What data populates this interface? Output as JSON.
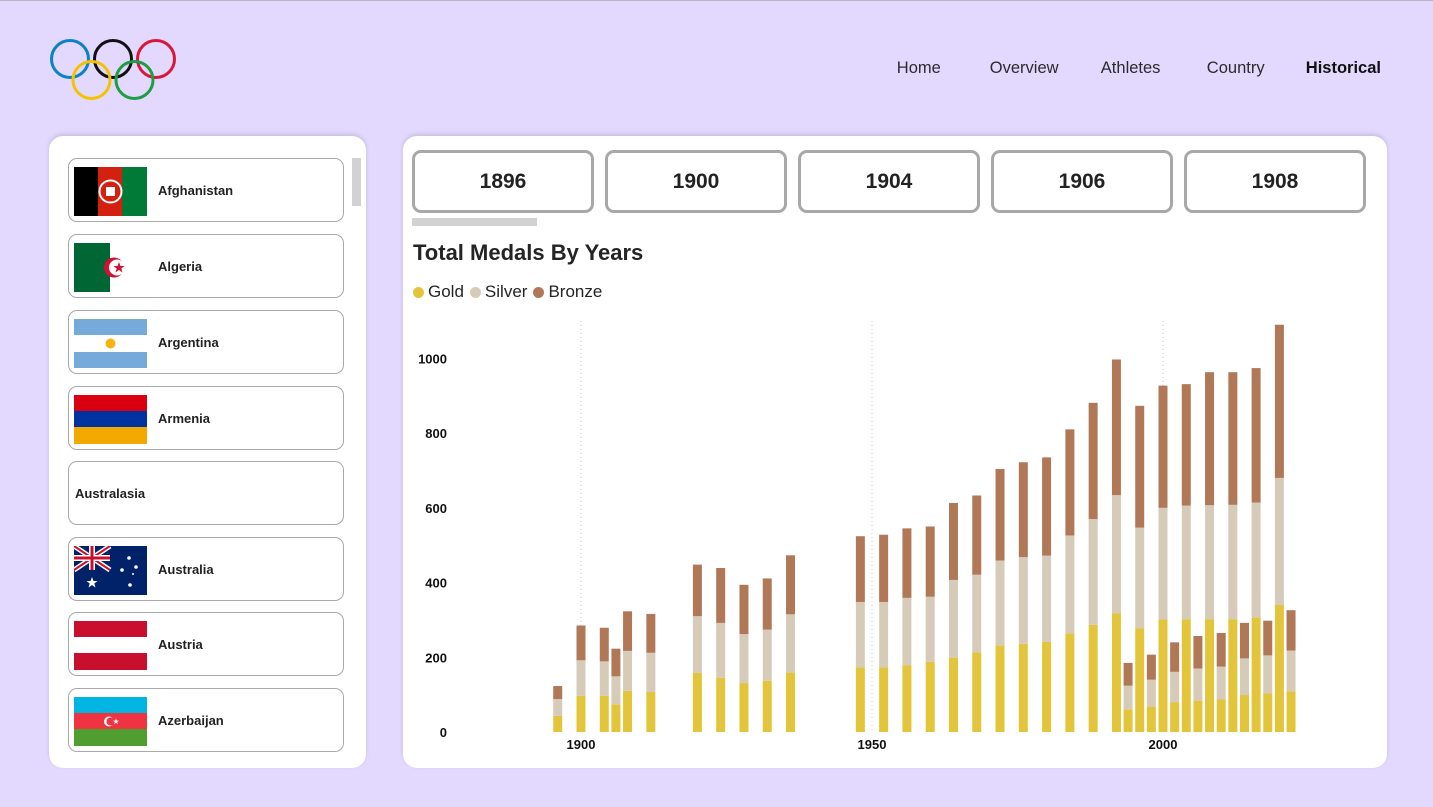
{
  "nav": {
    "items": [
      {
        "label": "Home",
        "active": false
      },
      {
        "label": "Overview",
        "active": false
      },
      {
        "label": "Athletes",
        "active": false
      },
      {
        "label": "Country",
        "active": false
      },
      {
        "label": "Historical",
        "active": true
      }
    ]
  },
  "countries": [
    {
      "name": "Afghanistan",
      "flag": "afghanistan"
    },
    {
      "name": "Algeria",
      "flag": "algeria"
    },
    {
      "name": "Argentina",
      "flag": "argentina"
    },
    {
      "name": "Armenia",
      "flag": "armenia"
    },
    {
      "name": "Australasia",
      "flag": ""
    },
    {
      "name": "Australia",
      "flag": "australia"
    },
    {
      "name": "Austria",
      "flag": "austria"
    },
    {
      "name": "Azerbaijan",
      "flag": "azerbaijan"
    }
  ],
  "year_buttons": [
    "1896",
    "1900",
    "1904",
    "1906",
    "1908"
  ],
  "colors": {
    "gold": "#e3c53b",
    "silver": "#d6cbb8",
    "bronze": "#b07857",
    "background": "#e3d8fe"
  },
  "chart_data": {
    "type": "bar",
    "stacked": true,
    "title": "Total Medals By Years",
    "xlabel": "",
    "ylabel": "",
    "ylim": [
      0,
      1100
    ],
    "xlim": [
      1880,
      2031
    ],
    "yticks": [
      "0",
      "200",
      "400",
      "600",
      "800",
      "1000"
    ],
    "xticks": [
      "1900",
      "1950",
      "2000"
    ],
    "grid": false,
    "legend_position": "top-left",
    "x": [
      1896,
      1900,
      1904,
      1906,
      1908,
      1912,
      1920,
      1924,
      1928,
      1932,
      1936,
      1948,
      1952,
      1956,
      1960,
      1964,
      1968,
      1972,
      1976,
      1980,
      1984,
      1988,
      1992,
      1994,
      1996,
      1998,
      2000,
      2002,
      2004,
      2006,
      2008,
      2010,
      2012,
      2014,
      2016,
      2018,
      2020,
      2022
    ],
    "series": [
      {
        "name": "Gold",
        "color": "#e3c53b",
        "values": [
          43,
          97,
          97,
          74,
          110,
          107,
          158,
          145,
          131,
          137,
          159,
          173,
          173,
          179,
          188,
          199,
          213,
          232,
          236,
          241,
          264,
          287,
          318,
          61,
          277,
          68,
          301,
          80,
          302,
          84,
          302,
          87,
          302,
          99,
          307,
          103,
          340,
          109
        ]
      },
      {
        "name": "Silver",
        "color": "#d6cbb8",
        "values": [
          45,
          95,
          92,
          75,
          107,
          105,
          152,
          147,
          131,
          137,
          156,
          175,
          175,
          180,
          174,
          208,
          208,
          227,
          232,
          231,
          262,
          283,
          316,
          63,
          270,
          72,
          299,
          81,
          304,
          86,
          305,
          88,
          306,
          98,
          307,
          102,
          340,
          109
        ]
      },
      {
        "name": "Bronze",
        "color": "#b07857",
        "values": [
          35,
          93,
          90,
          74,
          106,
          104,
          138,
          147,
          132,
          137,
          158,
          176,
          180,
          186,
          188,
          206,
          212,
          245,
          254,
          263,
          284,
          311,
          363,
          61,
          326,
          67,
          327,
          79,
          325,
          87,
          356,
          90,
          355,
          95,
          360,
          93,
          410,
          108
        ]
      }
    ]
  }
}
